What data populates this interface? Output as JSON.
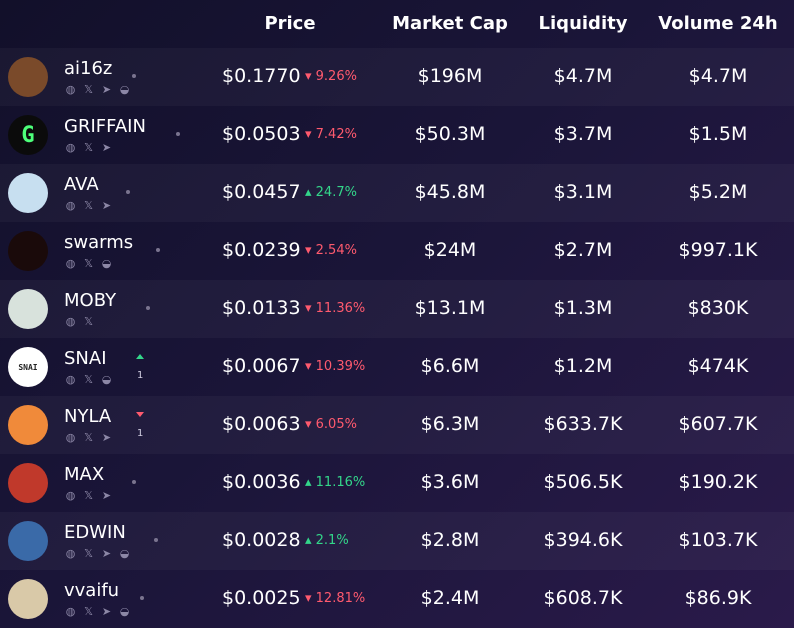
{
  "columns": {
    "price": "Price",
    "market_cap": "Market Cap",
    "liquidity": "Liquidity",
    "volume": "Volume 24h"
  },
  "colors": {
    "down": "#ff5a6e",
    "up": "#33d68a"
  },
  "rows": [
    {
      "name": "ai16z",
      "price": "$0.1770",
      "change": "9.26%",
      "dir": "down",
      "mcap": "$196M",
      "liq": "$4.7M",
      "vol": "$4.7M",
      "socials": [
        "web",
        "x",
        "telegram",
        "discord"
      ],
      "avatar": "#7a4a2a"
    },
    {
      "name": "GRIFFAIN",
      "price": "$0.0503",
      "change": "7.42%",
      "dir": "down",
      "mcap": "$50.3M",
      "liq": "$3.7M",
      "vol": "$1.5M",
      "socials": [
        "web",
        "x",
        "telegram"
      ],
      "avatar": "#0b0b0b",
      "glyph": "G"
    },
    {
      "name": "AVA",
      "price": "$0.0457",
      "change": "24.7%",
      "dir": "up",
      "mcap": "$45.8M",
      "liq": "$3.1M",
      "vol": "$5.2M",
      "socials": [
        "web",
        "x",
        "telegram"
      ],
      "avatar": "#c7dff0"
    },
    {
      "name": "swarms",
      "price": "$0.0239",
      "change": "2.54%",
      "dir": "down",
      "mcap": "$24M",
      "liq": "$2.7M",
      "vol": "$997.1K",
      "socials": [
        "web",
        "x",
        "discord"
      ],
      "avatar": "#1a0a0a"
    },
    {
      "name": "MOBY",
      "price": "$0.0133",
      "change": "11.36%",
      "dir": "down",
      "mcap": "$13.1M",
      "liq": "$1.3M",
      "vol": "$830K",
      "socials": [
        "web",
        "x"
      ],
      "avatar": "#d8e2dc"
    },
    {
      "name": "SNAI",
      "price": "$0.0067",
      "change": "10.39%",
      "dir": "down",
      "mcap": "$6.6M",
      "liq": "$1.2M",
      "vol": "$474K",
      "socials": [
        "web",
        "x",
        "discord"
      ],
      "avatar": "#ffffff",
      "rank": "1",
      "rank_dir": "up",
      "glyph": "SNAI"
    },
    {
      "name": "NYLA",
      "price": "$0.0063",
      "change": "6.05%",
      "dir": "down",
      "mcap": "$6.3M",
      "liq": "$633.7K",
      "vol": "$607.7K",
      "socials": [
        "web",
        "x",
        "telegram"
      ],
      "avatar": "#f08a3a",
      "rank": "1",
      "rank_dir": "down"
    },
    {
      "name": "MAX",
      "price": "$0.0036",
      "change": "11.16%",
      "dir": "up",
      "mcap": "$3.6M",
      "liq": "$506.5K",
      "vol": "$190.2K",
      "socials": [
        "web",
        "x",
        "telegram"
      ],
      "avatar": "#c0392b"
    },
    {
      "name": "EDWIN",
      "price": "$0.0028",
      "change": "2.1%",
      "dir": "up",
      "mcap": "$2.8M",
      "liq": "$394.6K",
      "vol": "$103.7K",
      "socials": [
        "web",
        "x",
        "telegram",
        "discord"
      ],
      "avatar": "#3a6aa8"
    },
    {
      "name": "vvaifu",
      "price": "$0.0025",
      "change": "12.81%",
      "dir": "down",
      "mcap": "$2.4M",
      "liq": "$608.7K",
      "vol": "$86.9K",
      "socials": [
        "web",
        "x",
        "telegram",
        "discord"
      ],
      "avatar": "#d9c9a8"
    }
  ]
}
